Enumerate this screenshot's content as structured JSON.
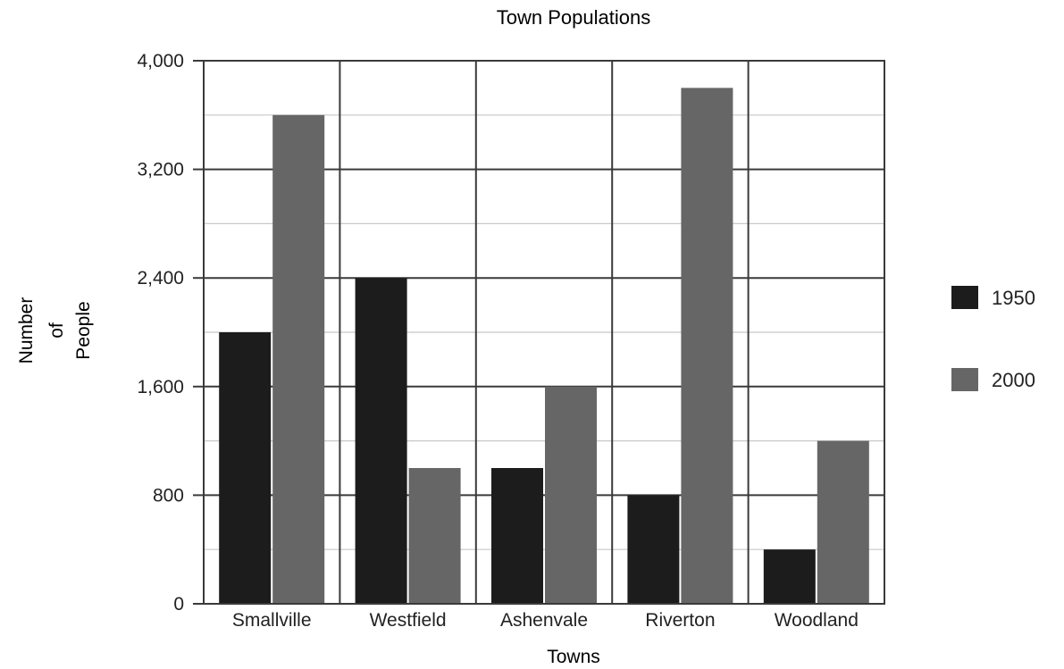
{
  "chart_data": {
    "type": "bar",
    "title": "Town Populations",
    "xlabel": "Towns",
    "ylabel": [
      "Number",
      "of",
      "People"
    ],
    "categories": [
      "Smallville",
      "Westfield",
      "Ashenvale",
      "Riverton",
      "Woodland"
    ],
    "series": [
      {
        "name": "1950",
        "color": "#1c1c1c",
        "values": [
          2000,
          2400,
          1000,
          800,
          400
        ]
      },
      {
        "name": "2000",
        "color": "#666666",
        "values": [
          3600,
          1000,
          1600,
          3800,
          1200
        ]
      }
    ],
    "ylim": [
      0,
      4000
    ],
    "yticks": [
      0,
      800,
      1600,
      2400,
      3200,
      4000
    ],
    "ytick_labels": [
      "0",
      "800",
      "1,600",
      "2,400",
      "3,200",
      "4,000"
    ],
    "minor_grid_step": 400,
    "grid": true,
    "legend_position": "right"
  }
}
